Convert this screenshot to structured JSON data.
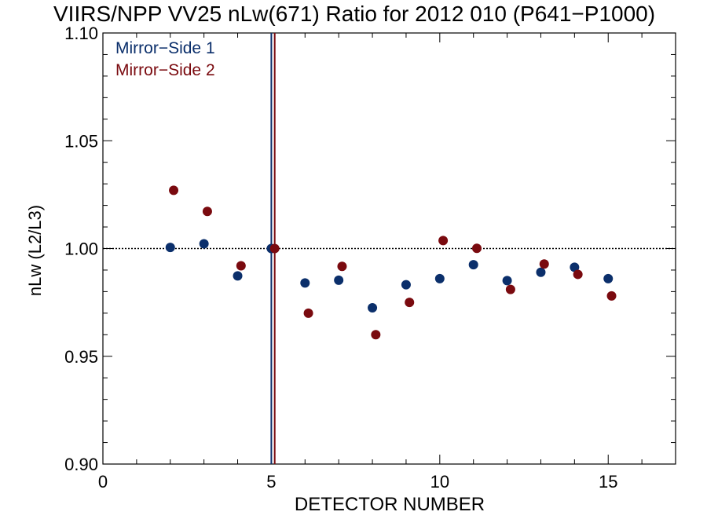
{
  "chart_data": {
    "type": "scatter",
    "title": "VIIRS/NPP VV25 nLw(671) Ratio for 2012 010 (P641−P1000)",
    "xlabel": "DETECTOR NUMBER",
    "ylabel": "nLw (L2/L3)",
    "xlim": [
      0,
      17
    ],
    "ylim": [
      0.9,
      1.1
    ],
    "x_ticks": [
      0,
      5,
      10,
      15
    ],
    "x_tick_labels": [
      "0",
      "5",
      "10",
      "15"
    ],
    "y_ticks": [
      0.9,
      0.95,
      1.0,
      1.05,
      1.1
    ],
    "y_tick_labels": [
      "0.90",
      "0.95",
      "1.00",
      "1.05",
      "1.10"
    ],
    "legend_position": "top-left",
    "grid": false,
    "reference_line": {
      "y": 1.0,
      "style": "dotted",
      "color": "#000000"
    },
    "vertical_lines": [
      {
        "x": 5.0,
        "color": "#0b2f6b"
      },
      {
        "x": 5.1,
        "color": "#7a0a0f"
      }
    ],
    "series": [
      {
        "name": "Mirror−Side 1",
        "color": "#0b2f6b",
        "x": [
          2,
          3,
          4,
          5,
          6,
          7,
          8,
          9,
          10,
          11,
          12,
          13,
          14,
          15
        ],
        "y": [
          1.0005,
          1.0022,
          0.9873,
          1.0,
          0.984,
          0.9853,
          0.9725,
          0.9832,
          0.986,
          0.9925,
          0.9851,
          0.989,
          0.9913,
          0.986
        ]
      },
      {
        "name": "Mirror−Side 2",
        "color": "#7a0a0f",
        "x": [
          2.1,
          3.1,
          4.1,
          5.1,
          6.1,
          7.1,
          8.1,
          9.1,
          10.1,
          11.1,
          12.1,
          13.1,
          14.1,
          15.1
        ],
        "y": [
          1.027,
          1.0172,
          0.992,
          1.0,
          0.97,
          0.9917,
          0.96,
          0.975,
          1.0037,
          1.0001,
          0.981,
          0.9928,
          0.988,
          0.978
        ]
      }
    ]
  }
}
